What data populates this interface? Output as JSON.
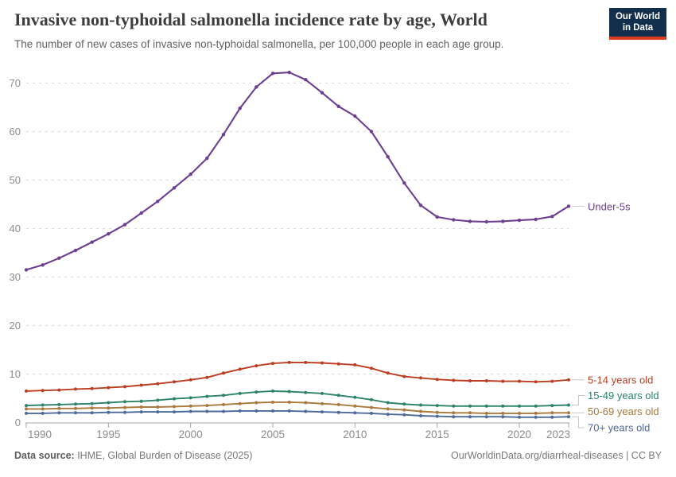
{
  "header": {
    "title": "Invasive non-typhoidal salmonella incidence rate by age, World",
    "subtitle": "The number of new cases of invasive non-typhoidal salmonella, per 100,000 people in each age group."
  },
  "logo": {
    "line1": "Our World",
    "line2": "in Data",
    "bg_color": "#12304E",
    "stripe_color": "#DC3A1E"
  },
  "chart_data": {
    "type": "line",
    "title": "Invasive non-typhoidal salmonella incidence rate by age, World",
    "xlabel": "",
    "ylabel": "",
    "xlim": [
      1990,
      2023
    ],
    "ylim": [
      0,
      73
    ],
    "x_ticks": [
      1990,
      1995,
      2000,
      2005,
      2010,
      2015,
      2020,
      2023
    ],
    "y_ticks": [
      0,
      10,
      20,
      30,
      40,
      50,
      60,
      70
    ],
    "grid": "horizontal-dashed",
    "legend_position": "end-of-line-labels",
    "x": [
      1990,
      1991,
      1992,
      1993,
      1994,
      1995,
      1996,
      1997,
      1998,
      1999,
      2000,
      2001,
      2002,
      2003,
      2004,
      2005,
      2006,
      2007,
      2008,
      2009,
      2010,
      2011,
      2012,
      2013,
      2014,
      2015,
      2016,
      2017,
      2018,
      2019,
      2020,
      2021,
      2022,
      2023
    ],
    "series": [
      {
        "name": "Under-5s",
        "slug": "under-5s",
        "color": "#6D3E91",
        "values": [
          31.5,
          32.5,
          33.9,
          35.5,
          37.2,
          38.9,
          40.8,
          43.2,
          45.6,
          48.4,
          51.2,
          54.5,
          59.4,
          64.8,
          69.2,
          72.0,
          72.2,
          70.7,
          68.0,
          65.2,
          63.2,
          60.0,
          54.8,
          49.4,
          44.8,
          42.4,
          41.8,
          41.5,
          41.4,
          41.5,
          41.7,
          41.9,
          42.5,
          44.6
        ]
      },
      {
        "name": "5-14 years old",
        "slug": "5-14",
        "color": "#BC3D22",
        "values": [
          6.5,
          6.6,
          6.7,
          6.9,
          7.0,
          7.2,
          7.4,
          7.7,
          8.0,
          8.4,
          8.8,
          9.3,
          10.2,
          11.0,
          11.7,
          12.2,
          12.4,
          12.4,
          12.3,
          12.1,
          11.9,
          11.2,
          10.2,
          9.5,
          9.2,
          8.9,
          8.7,
          8.6,
          8.6,
          8.5,
          8.5,
          8.4,
          8.5,
          8.8
        ]
      },
      {
        "name": "15-49 years old",
        "slug": "15-49",
        "color": "#2C8465",
        "values": [
          3.5,
          3.6,
          3.7,
          3.8,
          3.9,
          4.1,
          4.3,
          4.4,
          4.6,
          4.9,
          5.1,
          5.4,
          5.6,
          6.0,
          6.3,
          6.5,
          6.4,
          6.2,
          6.0,
          5.6,
          5.2,
          4.7,
          4.1,
          3.8,
          3.6,
          3.5,
          3.4,
          3.4,
          3.4,
          3.4,
          3.4,
          3.4,
          3.5,
          3.6
        ]
      },
      {
        "name": "50-69 years old",
        "slug": "50-69",
        "color": "#A9793E",
        "values": [
          2.8,
          2.8,
          2.9,
          2.9,
          3.0,
          3.0,
          3.1,
          3.2,
          3.2,
          3.3,
          3.4,
          3.5,
          3.7,
          3.9,
          4.1,
          4.2,
          4.2,
          4.1,
          3.9,
          3.7,
          3.4,
          3.1,
          2.8,
          2.6,
          2.3,
          2.1,
          2.0,
          2.0,
          1.9,
          1.9,
          1.9,
          1.9,
          2.0,
          2.0
        ]
      },
      {
        "name": "70+ years old",
        "slug": "70-plus",
        "color": "#4C6A9C",
        "values": [
          1.9,
          1.9,
          2.0,
          2.0,
          2.0,
          2.1,
          2.1,
          2.2,
          2.2,
          2.2,
          2.3,
          2.3,
          2.3,
          2.4,
          2.4,
          2.4,
          2.4,
          2.3,
          2.2,
          2.1,
          2.0,
          1.9,
          1.7,
          1.6,
          1.4,
          1.3,
          1.2,
          1.2,
          1.2,
          1.2,
          1.1,
          1.1,
          1.1,
          1.2
        ]
      }
    ]
  },
  "footer": {
    "source_label": "Data source:",
    "source_value": " IHME, Global Burden of Disease (2025)",
    "url": "OurWorldinData.org/diarrheal-diseases",
    "separator": " | ",
    "license": "CC BY"
  }
}
